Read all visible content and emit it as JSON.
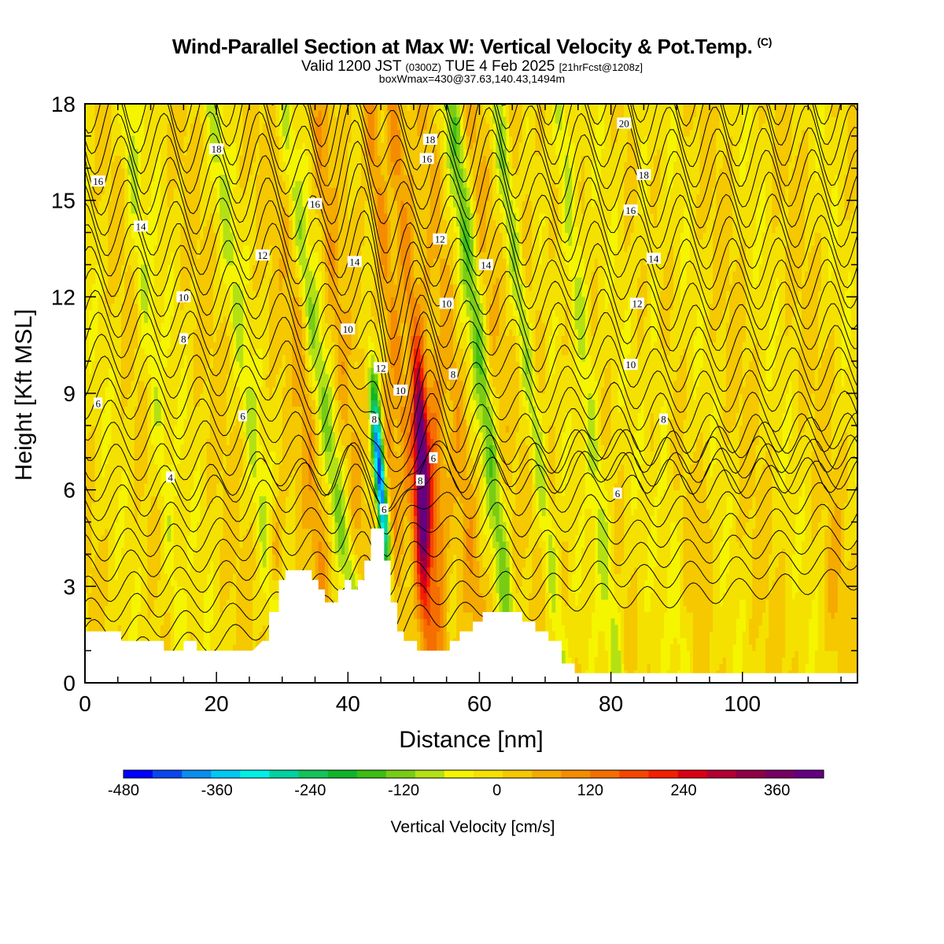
{
  "header": {
    "title": "Wind-Parallel Section at Max W: Vertical Velocity & Pot.Temp.",
    "title_mark": "(C)",
    "valid_prefix": "Valid 1200 JST",
    "valid_z": "(0300Z)",
    "valid_date": "TUE 4 Feb 2025",
    "forecast": "[21hrFcst@1208z]",
    "box_info": "boxWmax=430@37.63,140.43,1494m"
  },
  "chart_data": {
    "type": "heatmap",
    "xlabel": "Distance [nm]",
    "ylabel": "Height [Kft MSL]",
    "xlim": [
      0,
      117.5
    ],
    "ylim": [
      0,
      18
    ],
    "x_ticks": [
      0,
      20,
      40,
      60,
      80,
      100
    ],
    "y_ticks": [
      0,
      3,
      6,
      9,
      12,
      15,
      18
    ],
    "colorbar": {
      "label": "Vertical Velocity [cm/s]",
      "range": [
        -480,
        420
      ],
      "tick_values": [
        -480,
        -360,
        -240,
        -120,
        0,
        120,
        240,
        360
      ],
      "colors": [
        "#0000ff",
        "#0a46f0",
        "#0a8cf0",
        "#00c8f5",
        "#00f0e6",
        "#00d2a0",
        "#14c35a",
        "#10b428",
        "#3cbe14",
        "#78cd14",
        "#b4e114",
        "#f5f500",
        "#f5e100",
        "#f5c800",
        "#f5aa00",
        "#f58c00",
        "#f56e00",
        "#f54600",
        "#f51e00",
        "#dc0014",
        "#b40032",
        "#910046",
        "#780064",
        "#640082"
      ]
    },
    "terrain": [
      [
        0,
        1.6
      ],
      [
        5.5,
        1.6
      ],
      [
        5.5,
        1.3
      ],
      [
        12,
        1.3
      ],
      [
        12,
        1.0
      ],
      [
        15,
        1.0
      ],
      [
        15,
        1.3
      ],
      [
        17,
        1.3
      ],
      [
        17,
        1.0
      ],
      [
        25.5,
        1.0
      ],
      [
        27,
        1.3
      ],
      [
        28,
        1.3
      ],
      [
        28,
        2.2
      ],
      [
        29.5,
        2.2
      ],
      [
        29.5,
        3.2
      ],
      [
        30.5,
        3.2
      ],
      [
        30.5,
        3.5
      ],
      [
        34.5,
        3.5
      ],
      [
        34.5,
        3.2
      ],
      [
        35.5,
        3.2
      ],
      [
        35.5,
        2.9
      ],
      [
        36.5,
        2.9
      ],
      [
        36.5,
        2.5
      ],
      [
        38.5,
        2.5
      ],
      [
        38.5,
        2.9
      ],
      [
        39.5,
        2.9
      ],
      [
        39.5,
        3.2
      ],
      [
        40.5,
        3.2
      ],
      [
        40.5,
        2.9
      ],
      [
        41.5,
        2.9
      ],
      [
        41.5,
        3.2
      ],
      [
        42.5,
        3.2
      ],
      [
        42.5,
        3.8
      ],
      [
        43.5,
        3.8
      ],
      [
        43.5,
        4.8
      ],
      [
        45.5,
        4.8
      ],
      [
        45.5,
        3.8
      ],
      [
        46.5,
        3.8
      ],
      [
        46.5,
        2.5
      ],
      [
        47.5,
        2.5
      ],
      [
        47.5,
        1.6
      ],
      [
        48.5,
        1.6
      ],
      [
        48.5,
        1.3
      ],
      [
        50.5,
        1.3
      ],
      [
        50.5,
        1.0
      ],
      [
        55.5,
        1.0
      ],
      [
        55.5,
        1.3
      ],
      [
        57,
        1.3
      ],
      [
        57,
        1.6
      ],
      [
        59,
        1.6
      ],
      [
        59,
        1.9
      ],
      [
        60.5,
        1.9
      ],
      [
        60.5,
        2.2
      ],
      [
        66.5,
        2.2
      ],
      [
        66.5,
        1.9
      ],
      [
        68.5,
        1.9
      ],
      [
        68.5,
        1.6
      ],
      [
        70.5,
        1.6
      ],
      [
        70.5,
        1.3
      ],
      [
        72.5,
        1.3
      ],
      [
        72.5,
        0.6
      ],
      [
        74.5,
        0.6
      ],
      [
        74.5,
        0.3
      ],
      [
        117.5,
        0.3
      ]
    ],
    "theta_contour_labels": [
      {
        "value": "4",
        "x": 13,
        "y": 6.4
      },
      {
        "value": "6",
        "x": 2,
        "y": 8.7
      },
      {
        "value": "6",
        "x": 24,
        "y": 8.3
      },
      {
        "value": "8",
        "x": 15,
        "y": 10.7
      },
      {
        "value": "10",
        "x": 15,
        "y": 12.0
      },
      {
        "value": "12",
        "x": 27,
        "y": 13.3
      },
      {
        "value": "14",
        "x": 8.5,
        "y": 14.2
      },
      {
        "value": "16",
        "x": 2,
        "y": 15.6
      },
      {
        "value": "18",
        "x": 20,
        "y": 16.6
      },
      {
        "value": "16",
        "x": 35,
        "y": 14.9
      },
      {
        "value": "14",
        "x": 41,
        "y": 13.1
      },
      {
        "value": "10",
        "x": 40,
        "y": 11.0
      },
      {
        "value": "12",
        "x": 45,
        "y": 9.8
      },
      {
        "value": "8",
        "x": 44,
        "y": 8.2
      },
      {
        "value": "6",
        "x": 45.5,
        "y": 5.4
      },
      {
        "value": "10",
        "x": 48,
        "y": 9.1
      },
      {
        "value": "8",
        "x": 51,
        "y": 6.3
      },
      {
        "value": "6",
        "x": 53,
        "y": 7.0
      },
      {
        "value": "8",
        "x": 56,
        "y": 9.6
      },
      {
        "value": "10",
        "x": 55,
        "y": 11.8
      },
      {
        "value": "12",
        "x": 54,
        "y": 13.8
      },
      {
        "value": "14",
        "x": 61,
        "y": 13.0
      },
      {
        "value": "16",
        "x": 52,
        "y": 16.3
      },
      {
        "value": "18",
        "x": 52.5,
        "y": 16.9
      },
      {
        "value": "20",
        "x": 82,
        "y": 17.4
      },
      {
        "value": "18",
        "x": 85,
        "y": 15.8
      },
      {
        "value": "16",
        "x": 83,
        "y": 14.7
      },
      {
        "value": "14",
        "x": 86.5,
        "y": 13.2
      },
      {
        "value": "12",
        "x": 84,
        "y": 11.8
      },
      {
        "value": "10",
        "x": 83,
        "y": 9.9
      },
      {
        "value": "8",
        "x": 88,
        "y": 8.2
      },
      {
        "value": "6",
        "x": 81,
        "y": 5.9
      }
    ]
  }
}
